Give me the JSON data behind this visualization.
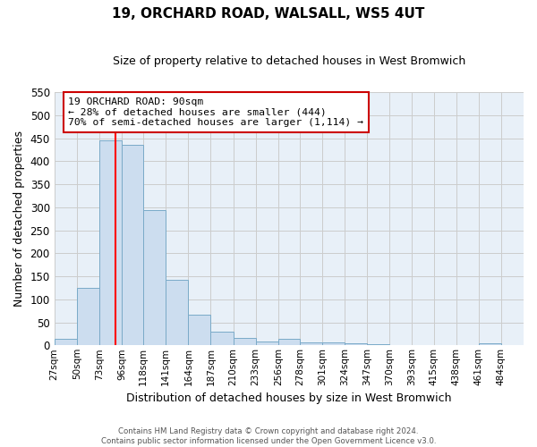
{
  "title": "19, ORCHARD ROAD, WALSALL, WS5 4UT",
  "subtitle": "Size of property relative to detached houses in West Bromwich",
  "xlabel": "Distribution of detached houses by size in West Bromwich",
  "ylabel": "Number of detached properties",
  "bar_color": "#ccddef",
  "bar_edge_color": "#7aaac8",
  "grid_color": "#cccccc",
  "plot_bg_color": "#e8f0f8",
  "fig_bg_color": "#ffffff",
  "bin_labels": [
    "27sqm",
    "50sqm",
    "73sqm",
    "96sqm",
    "118sqm",
    "141sqm",
    "164sqm",
    "187sqm",
    "210sqm",
    "233sqm",
    "256sqm",
    "278sqm",
    "301sqm",
    "324sqm",
    "347sqm",
    "370sqm",
    "393sqm",
    "415sqm",
    "438sqm",
    "461sqm",
    "484sqm"
  ],
  "bar_heights": [
    15,
    125,
    445,
    435,
    293,
    143,
    66,
    29,
    17,
    8,
    14,
    7,
    7,
    4,
    2,
    0,
    0,
    0,
    0,
    5,
    0
  ],
  "bin_edges": [
    27,
    50,
    73,
    96,
    118,
    141,
    164,
    187,
    210,
    233,
    256,
    278,
    301,
    324,
    347,
    370,
    393,
    415,
    438,
    461,
    484,
    507
  ],
  "red_line_x": 90,
  "ylim": [
    0,
    550
  ],
  "yticks": [
    0,
    50,
    100,
    150,
    200,
    250,
    300,
    350,
    400,
    450,
    500,
    550
  ],
  "annotation_text": "19 ORCHARD ROAD: 90sqm\n← 28% of detached houses are smaller (444)\n70% of semi-detached houses are larger (1,114) →",
  "annotation_box_color": "#ffffff",
  "annotation_box_edge_color": "#cc0000",
  "footer_line1": "Contains HM Land Registry data © Crown copyright and database right 2024.",
  "footer_line2": "Contains public sector information licensed under the Open Government Licence v3.0."
}
